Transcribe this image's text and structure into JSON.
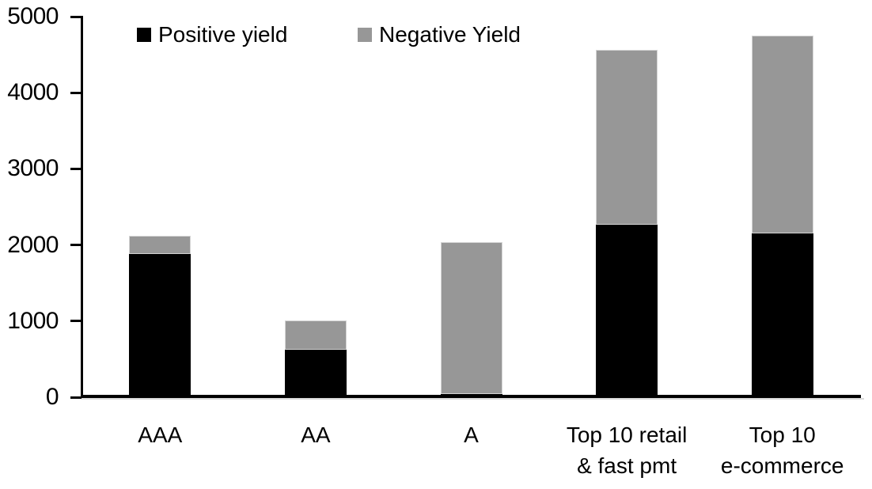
{
  "chart_data": {
    "type": "bar",
    "stacked": true,
    "title": "",
    "xlabel": "",
    "ylabel": "",
    "categories": [
      [
        "AAA"
      ],
      [
        "AA"
      ],
      [
        "A"
      ],
      [
        "Top 10 retail",
        "& fast pmt"
      ],
      [
        "Top 10",
        "e-commerce"
      ]
    ],
    "series": [
      {
        "name": "Positive yield",
        "color": "#000000",
        "values": [
          1880,
          620,
          40,
          2270,
          2150
        ]
      },
      {
        "name": "Negative Yield",
        "color": "#979797",
        "values": [
          240,
          390,
          2000,
          2290,
          2600
        ]
      }
    ],
    "totals": [
      2120,
      1010,
      2040,
      4560,
      4750
    ],
    "ylim": [
      0,
      5000
    ],
    "yticks": [
      0,
      1000,
      2000,
      3000,
      4000,
      5000
    ],
    "grid": false,
    "legend_position": "top-left",
    "axis_color": "#000000",
    "background_color": "#ffffff"
  }
}
